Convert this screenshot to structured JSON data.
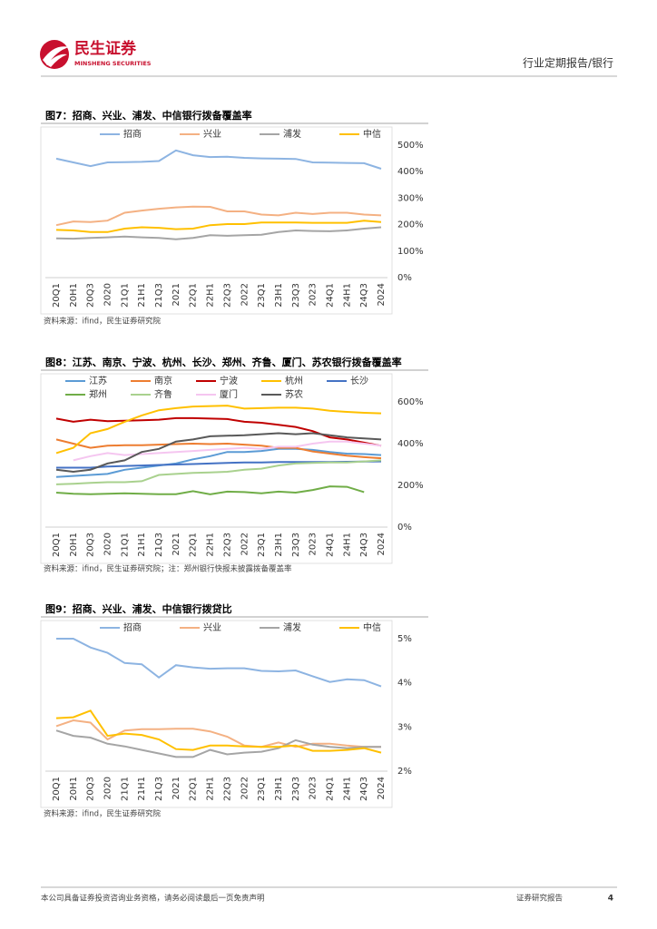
{
  "header": {
    "brand": "民生证券",
    "brand_en": "MINSHENG SECURITIES",
    "report_type": "行业定期报告/银行"
  },
  "chart_data": [
    {
      "type": "line",
      "title": "图7：招商、兴业、浦发、中信银行拨备覆盖率",
      "source": "资料来源：ifind，民生证券研究院",
      "categories": [
        "20Q1",
        "20H1",
        "20Q3",
        "2020",
        "21Q1",
        "21H1",
        "21Q3",
        "2021",
        "22Q1",
        "22H1",
        "22Q3",
        "2022",
        "23Q1",
        "23H1",
        "23Q3",
        "2023",
        "24Q1",
        "24H1",
        "24Q3",
        "2024"
      ],
      "series": [
        {
          "name": "招商",
          "color": "#8db4e2",
          "values": [
            449,
            435,
            421,
            435,
            436,
            437,
            440,
            480,
            462,
            455,
            456,
            452,
            450,
            449,
            448,
            435,
            434,
            433,
            432,
            411
          ]
        },
        {
          "name": "兴业",
          "color": "#f4b183",
          "values": [
            198,
            212,
            210,
            215,
            245,
            253,
            260,
            265,
            268,
            267,
            250,
            250,
            238,
            235,
            245,
            240,
            245,
            245,
            238,
            235
          ]
        },
        {
          "name": "浦发",
          "color": "#a5a5a5",
          "values": [
            148,
            147,
            150,
            152,
            155,
            152,
            150,
            145,
            150,
            160,
            158,
            160,
            162,
            172,
            178,
            176,
            175,
            178,
            185,
            190
          ]
        },
        {
          "name": "中信",
          "color": "#ffc000",
          "values": [
            180,
            178,
            172,
            172,
            185,
            190,
            188,
            183,
            185,
            198,
            202,
            202,
            208,
            208,
            208,
            207,
            207,
            207,
            215,
            210
          ]
        }
      ],
      "ylim": [
        0,
        500
      ],
      "yticks": [
        {
          "value": 0,
          "label": "0%"
        },
        {
          "value": 100,
          "label": "100%"
        },
        {
          "value": 200,
          "label": "200%"
        },
        {
          "value": 300,
          "label": "300%"
        },
        {
          "value": 400,
          "label": "400%"
        },
        {
          "value": 500,
          "label": "500%"
        }
      ]
    },
    {
      "type": "line",
      "title": "图8：江苏、南京、宁波、杭州、长沙、郑州、齐鲁、厦门、苏农银行拨备覆盖率",
      "source": "资料来源：ifind，民生证券研究院；注：郑州银行快报未披露拨备覆盖率",
      "categories": [
        "20Q1",
        "20H1",
        "20Q3",
        "2020",
        "21Q1",
        "21H1",
        "21Q3",
        "2021",
        "22Q1",
        "22H1",
        "22Q3",
        "2022",
        "23Q1",
        "23H1",
        "23Q3",
        "2023",
        "24Q1",
        "24H1",
        "24Q3",
        "2024"
      ],
      "series": [
        {
          "name": "江苏",
          "color": "#5b9bd5",
          "values": [
            240,
            245,
            250,
            255,
            275,
            285,
            295,
            305,
            325,
            340,
            360,
            360,
            365,
            375,
            375,
            370,
            360,
            352,
            350,
            345
          ]
        },
        {
          "name": "南京",
          "color": "#ed7d31",
          "values": [
            420,
            400,
            380,
            390,
            392,
            392,
            395,
            398,
            400,
            398,
            400,
            395,
            390,
            380,
            380,
            362,
            352,
            342,
            335,
            330
          ]
        },
        {
          "name": "宁波",
          "color": "#c00000",
          "values": [
            520,
            505,
            515,
            508,
            510,
            512,
            515,
            522,
            522,
            520,
            518,
            505,
            500,
            490,
            480,
            460,
            430,
            420,
            405,
            390
          ]
        },
        {
          "name": "杭州",
          "color": "#ffc000",
          "values": [
            355,
            380,
            450,
            470,
            505,
            535,
            560,
            570,
            578,
            580,
            582,
            568,
            570,
            572,
            572,
            568,
            558,
            552,
            548,
            545
          ]
        },
        {
          "name": "长沙",
          "color": "#4472c4",
          "values": [
            285,
            285,
            285,
            290,
            293,
            295,
            298,
            300,
            302,
            305,
            308,
            310,
            310,
            312,
            312,
            312,
            312,
            313,
            314,
            315
          ]
        },
        {
          "name": "郑州",
          "color": "#70ad47",
          "values": [
            165,
            160,
            158,
            160,
            162,
            160,
            158,
            158,
            172,
            157,
            170,
            168,
            162,
            170,
            165,
            178,
            195,
            193,
            168,
            null
          ]
        },
        {
          "name": "齐鲁",
          "color": "#a9d18e",
          "values": [
            205,
            208,
            212,
            215,
            215,
            220,
            250,
            255,
            260,
            262,
            265,
            275,
            280,
            295,
            305,
            308,
            310,
            310,
            315,
            320
          ]
        },
        {
          "name": "厦门",
          "color": "#f5c6f0",
          "values": [
            null,
            320,
            340,
            355,
            345,
            350,
            355,
            360,
            365,
            370,
            375,
            380,
            375,
            385,
            385,
            400,
            410,
            410,
            400,
            390
          ]
        },
        {
          "name": "苏农",
          "color": "#595959",
          "values": [
            275,
            265,
            275,
            305,
            320,
            360,
            375,
            410,
            420,
            435,
            438,
            440,
            445,
            450,
            445,
            450,
            440,
            430,
            425,
            420
          ]
        }
      ],
      "ylim": [
        0,
        600
      ],
      "yticks": [
        {
          "value": 0,
          "label": "0%"
        },
        {
          "value": 200,
          "label": "200%"
        },
        {
          "value": 400,
          "label": "400%"
        },
        {
          "value": 600,
          "label": "600%"
        }
      ]
    },
    {
      "type": "line",
      "title": "图9：招商、兴业、浦发、中信银行拨贷比",
      "source": "资料来源：ifind，民生证券研究院",
      "categories": [
        "20Q1",
        "20H1",
        "20Q3",
        "2020",
        "21Q1",
        "21H1",
        "21Q3",
        "2021",
        "22Q1",
        "22H1",
        "22Q3",
        "2022",
        "23Q1",
        "23H1",
        "23Q3",
        "2023",
        "24Q1",
        "24H1",
        "24Q3",
        "2024"
      ],
      "series": [
        {
          "name": "招商",
          "color": "#8db4e2",
          "values": [
            5.0,
            5.0,
            4.8,
            4.68,
            4.45,
            4.42,
            4.12,
            4.4,
            4.35,
            4.32,
            4.33,
            4.33,
            4.27,
            4.26,
            4.28,
            4.15,
            4.02,
            4.08,
            4.06,
            3.92
          ]
        },
        {
          "name": "兴业",
          "color": "#f4b183",
          "values": [
            3.02,
            3.15,
            3.1,
            2.72,
            2.92,
            2.95,
            2.95,
            2.96,
            2.96,
            2.9,
            2.78,
            2.58,
            2.55,
            2.65,
            2.55,
            2.62,
            2.62,
            2.58,
            2.55,
            2.55
          ]
        },
        {
          "name": "浦发",
          "color": "#a5a5a5",
          "values": [
            2.92,
            2.8,
            2.76,
            2.62,
            2.56,
            2.48,
            2.4,
            2.32,
            2.32,
            2.48,
            2.38,
            2.42,
            2.44,
            2.52,
            2.7,
            2.6,
            2.55,
            2.52,
            2.55,
            2.55
          ]
        },
        {
          "name": "中信",
          "color": "#ffc000",
          "values": [
            3.2,
            3.22,
            3.37,
            2.8,
            2.85,
            2.82,
            2.72,
            2.5,
            2.48,
            2.58,
            2.58,
            2.56,
            2.55,
            2.55,
            2.58,
            2.46,
            2.46,
            2.48,
            2.52,
            2.42
          ]
        }
      ],
      "ylim": [
        2,
        5
      ],
      "yticks": [
        {
          "value": 2,
          "label": "2%"
        },
        {
          "value": 3,
          "label": "3%"
        },
        {
          "value": 4,
          "label": "4%"
        },
        {
          "value": 5,
          "label": "5%"
        }
      ]
    }
  ],
  "footer": {
    "disclaimer": "本公司具备证券投资咨询业务资格，请务必阅读最后一页免责声明",
    "label": "证券研究报告",
    "page": 4
  }
}
